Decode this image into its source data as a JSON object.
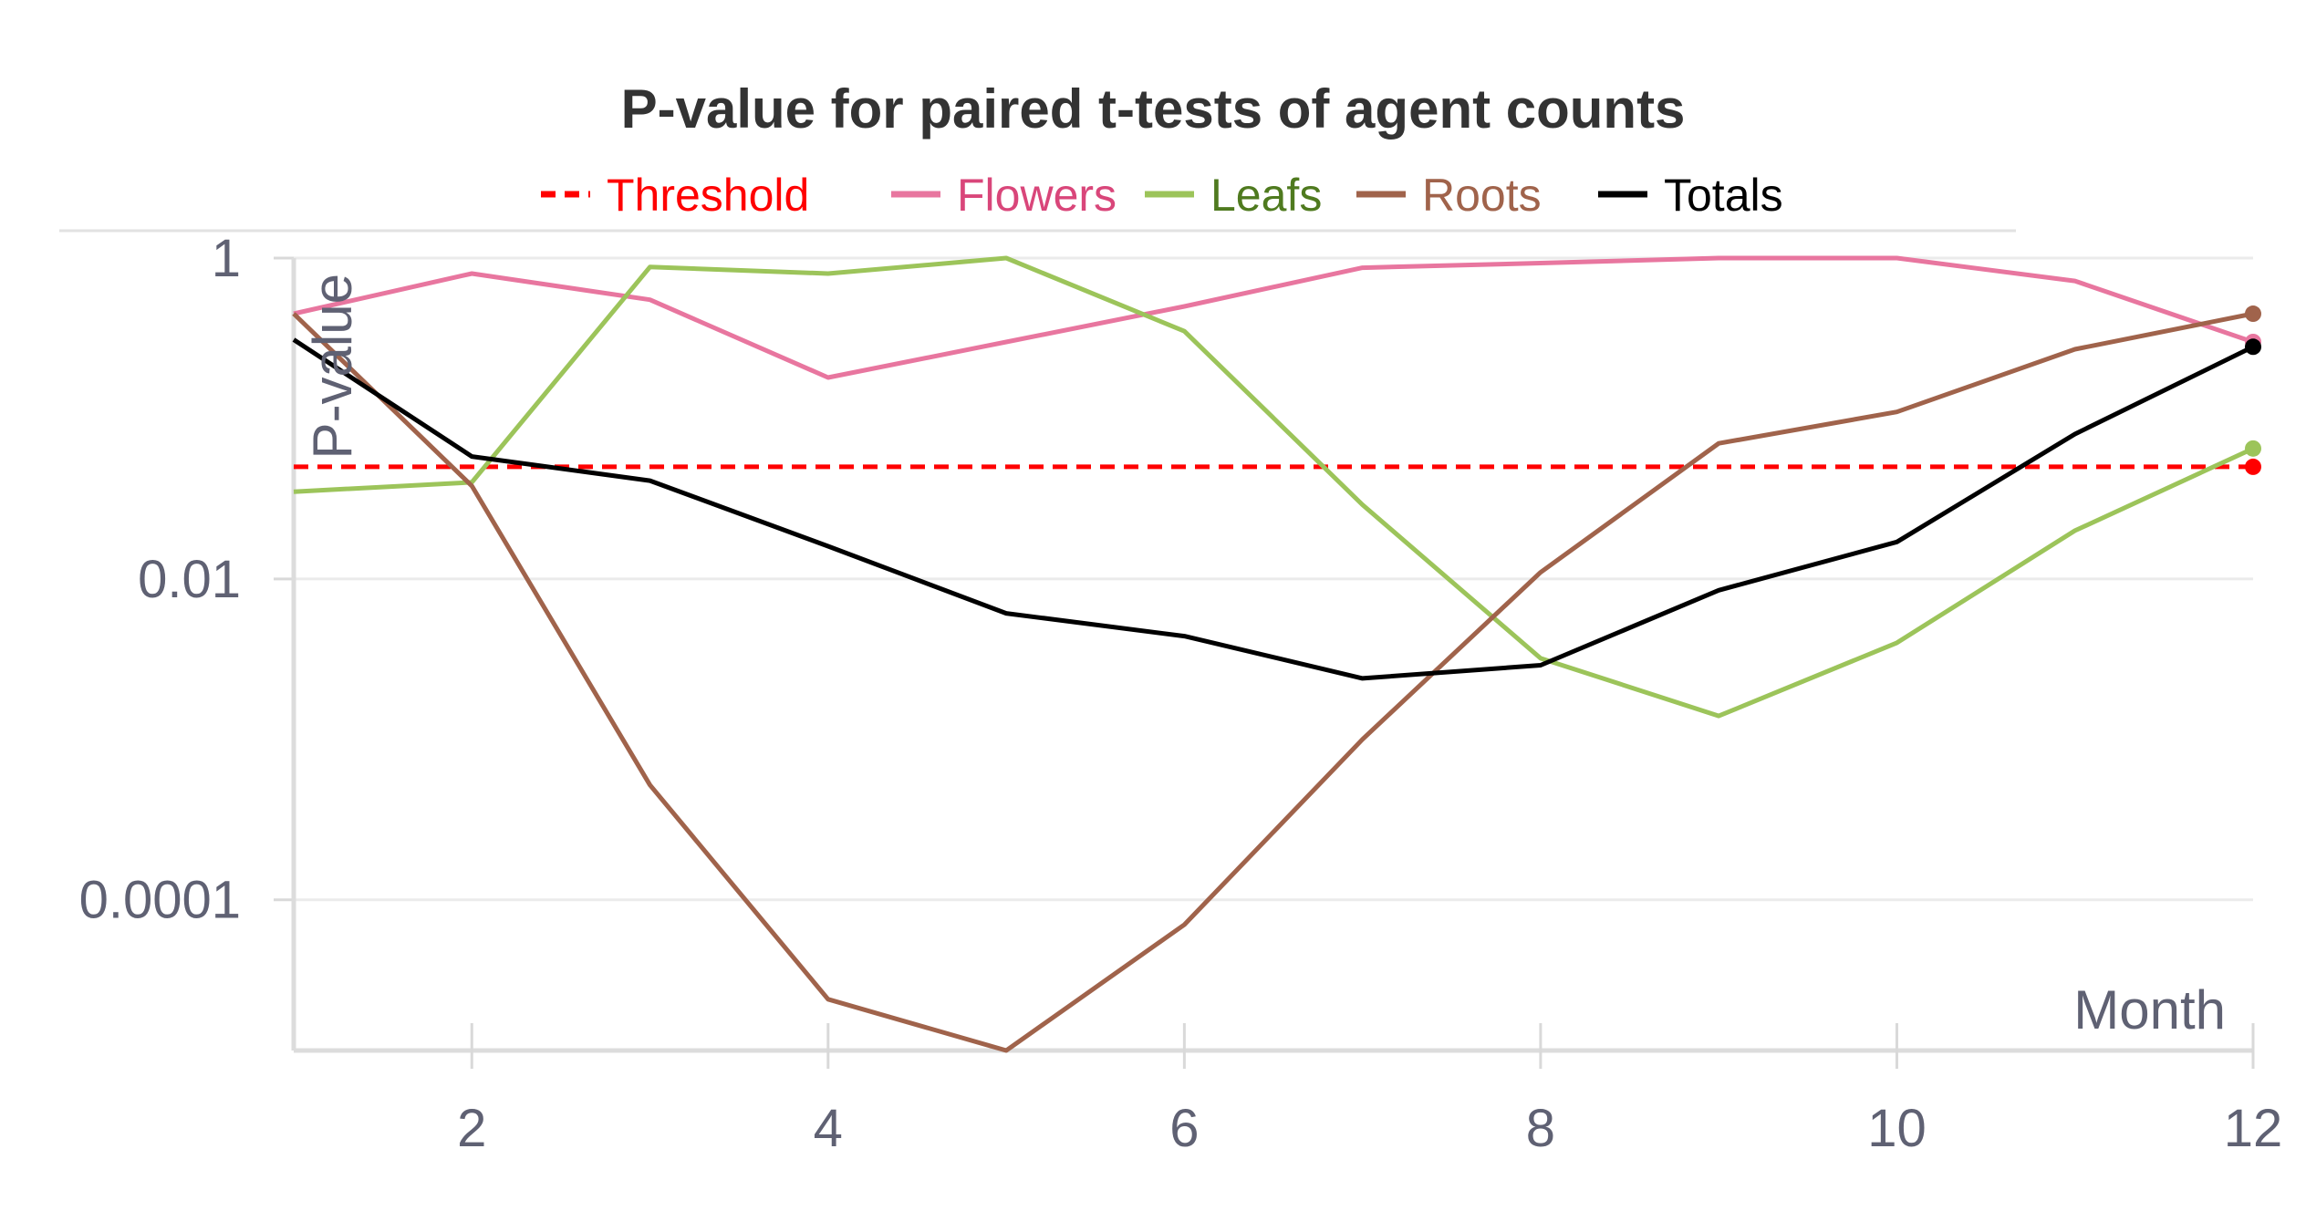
{
  "chart_data": {
    "type": "line",
    "title": "P-value for paired t-tests of agent counts",
    "xlabel": "Month",
    "ylabel": "P-value",
    "y_scale": "log",
    "xlim": [
      1,
      12
    ],
    "ylim": [
      1.15e-05,
      1
    ],
    "x_ticks": [
      2,
      4,
      6,
      8,
      10,
      12
    ],
    "x_tick_labels": [
      "2",
      "4",
      "6",
      "8",
      "10",
      "12"
    ],
    "y_ticks": [
      1,
      0.01,
      0.0001
    ],
    "y_tick_labels": [
      "1",
      "0.01",
      "0.0001"
    ],
    "grid": true,
    "legend_position": "top",
    "x": [
      1,
      2,
      3,
      4,
      5,
      6,
      7,
      8,
      9,
      10,
      11,
      12
    ],
    "series": [
      {
        "name": "Threshold",
        "color": "#ff0000",
        "dash": true,
        "values": [
          0.05,
          0.05,
          0.05,
          0.05,
          0.05,
          0.05,
          0.05,
          0.05,
          0.05,
          0.05,
          0.05,
          0.05
        ]
      },
      {
        "name": "Flowers",
        "color": "#e8769f",
        "values": [
          0.45,
          0.8,
          0.55,
          0.18,
          0.3,
          0.5,
          0.87,
          0.93,
          1.0,
          1.0,
          0.72,
          0.3
        ]
      },
      {
        "name": "Leafs",
        "color": "#9cc45a",
        "values": [
          0.035,
          0.04,
          0.88,
          0.8,
          1.0,
          0.35,
          0.029,
          0.0032,
          0.0014,
          0.004,
          0.02,
          0.065
        ]
      },
      {
        "name": "Roots",
        "color": "#a0634b",
        "values": [
          0.45,
          0.038,
          0.00052,
          2.4e-05,
          1.15e-05,
          7e-05,
          0.001,
          0.011,
          0.07,
          0.11,
          0.27,
          0.45
        ]
      },
      {
        "name": "Totals",
        "color": "#000000",
        "values": [
          0.31,
          0.058,
          0.041,
          0.016,
          0.0061,
          0.0044,
          0.0024,
          0.0029,
          0.0085,
          0.017,
          0.08,
          0.28
        ]
      }
    ]
  }
}
